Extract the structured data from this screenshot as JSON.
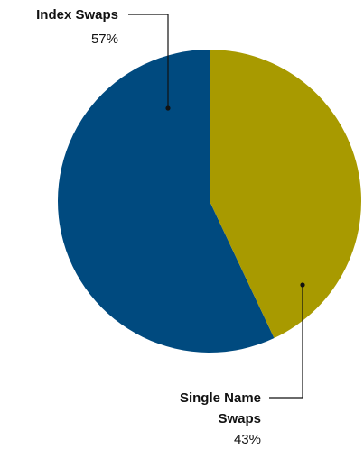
{
  "chart_data": {
    "type": "pie",
    "slices": [
      {
        "label_lines": [
          "Index Swaps"
        ],
        "percent_label": "57%",
        "value": 57,
        "color": "#004a7f"
      },
      {
        "label_lines": [
          "Single Name",
          "Swaps"
        ],
        "percent_label": "43%",
        "value": 43,
        "color": "#a89a00"
      }
    ],
    "start": "twelve o'clock, single-name slice clockwise",
    "legend": "none (callout labels)"
  }
}
